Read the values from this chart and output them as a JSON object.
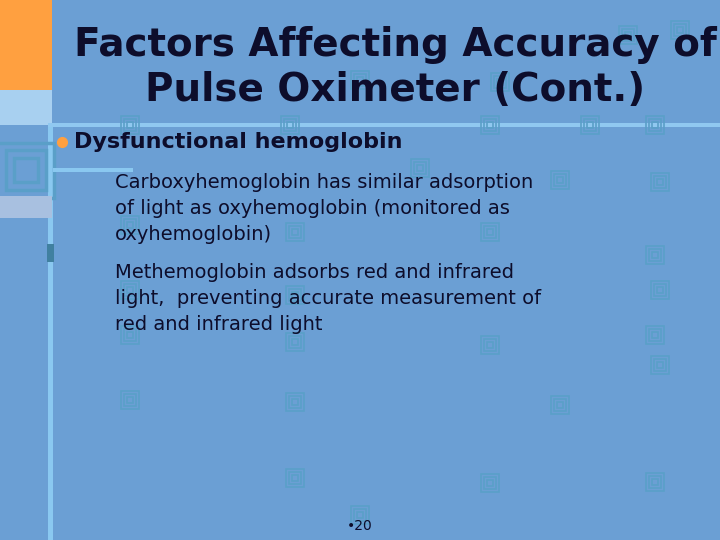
{
  "title_line1": "Factors Affecting Accuracy of",
  "title_line2": "Pulse Oximeter (Cont.)",
  "bg_color": "#6B9FD4",
  "title_text_color": "#0D0D2B",
  "body_text_color": "#0D0D2B",
  "bullet_color": "#FFA040",
  "left_orange_color": "#FFA040",
  "light_blue_strip": "#A8D0F0",
  "accent_line_color": "#8AC8F0",
  "spiral_color": "#5A9FC8",
  "divider_color": "#90C8F0",
  "gray_rect_color": "#A8C0E0",
  "bullet_point": "Dysfunctional hemoglobin",
  "sub_bullet1_line1": "Carboxyhemoglobin has similar adsorption",
  "sub_bullet1_line2": "of light as oxyhemoglobin (monitored as",
  "sub_bullet1_line3": "oxyhemoglobin)",
  "sub_bullet2_line1": "Methemoglobin adsorbs red and infrared",
  "sub_bullet2_line2": "light,  preventing accurate measurement of",
  "sub_bullet2_line3": "red and infrared light",
  "footer": "•20"
}
